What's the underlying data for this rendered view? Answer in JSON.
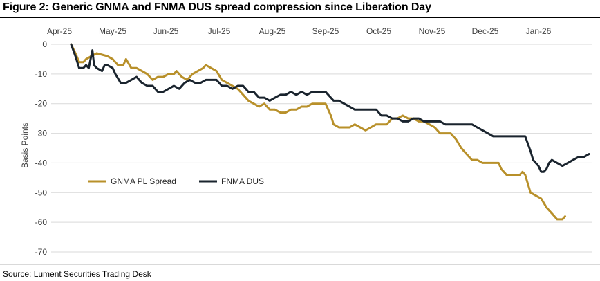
{
  "title": "Figure 2: Generic GNMA and FNMA DUS spread compression since Liberation Day",
  "source": "Source: Lument Securities Trading Desk",
  "chart_data": {
    "type": "line",
    "ylabel": "Basis Points",
    "xlabel": "",
    "ylim": [
      -70,
      0
    ],
    "yticks": [
      0,
      -10,
      -20,
      -30,
      -40,
      -50,
      -60,
      -70
    ],
    "xlim": [
      0,
      10
    ],
    "xticks": [
      {
        "x": 0,
        "label": "Apr-25"
      },
      {
        "x": 1,
        "label": "May-25"
      },
      {
        "x": 2,
        "label": "Jun-25"
      },
      {
        "x": 3,
        "label": "Jul-25"
      },
      {
        "x": 4,
        "label": "Aug-25"
      },
      {
        "x": 5,
        "label": "Sep-25"
      },
      {
        "x": 6,
        "label": "Oct-25"
      },
      {
        "x": 7,
        "label": "Nov-25"
      },
      {
        "x": 8,
        "label": "Dec-25"
      },
      {
        "x": 9,
        "label": "Jan-26"
      }
    ],
    "grid": "horizontal",
    "legend_position": "lower-left",
    "series": [
      {
        "name": "GNMA PL Spread",
        "color": "#b8902a",
        "points": [
          [
            0.22,
            0
          ],
          [
            0.3,
            -3
          ],
          [
            0.37,
            -6
          ],
          [
            0.45,
            -6
          ],
          [
            0.5,
            -5
          ],
          [
            0.6,
            -4
          ],
          [
            0.7,
            -3
          ],
          [
            0.8,
            -3.5
          ],
          [
            0.9,
            -4
          ],
          [
            1.0,
            -5
          ],
          [
            1.1,
            -7
          ],
          [
            1.2,
            -7
          ],
          [
            1.25,
            -5
          ],
          [
            1.35,
            -8
          ],
          [
            1.45,
            -8
          ],
          [
            1.55,
            -9
          ],
          [
            1.65,
            -10
          ],
          [
            1.75,
            -12
          ],
          [
            1.85,
            -11
          ],
          [
            1.95,
            -11
          ],
          [
            2.05,
            -10
          ],
          [
            2.15,
            -10
          ],
          [
            2.2,
            -9
          ],
          [
            2.3,
            -11
          ],
          [
            2.4,
            -12
          ],
          [
            2.5,
            -10
          ],
          [
            2.6,
            -9
          ],
          [
            2.7,
            -8
          ],
          [
            2.75,
            -7
          ],
          [
            2.85,
            -8
          ],
          [
            2.95,
            -9
          ],
          [
            3.05,
            -12
          ],
          [
            3.15,
            -13
          ],
          [
            3.25,
            -14
          ],
          [
            3.35,
            -15
          ],
          [
            3.45,
            -17
          ],
          [
            3.55,
            -19
          ],
          [
            3.65,
            -20
          ],
          [
            3.75,
            -21
          ],
          [
            3.85,
            -20
          ],
          [
            3.95,
            -22
          ],
          [
            4.05,
            -22
          ],
          [
            4.15,
            -23
          ],
          [
            4.25,
            -23
          ],
          [
            4.35,
            -22
          ],
          [
            4.45,
            -22
          ],
          [
            4.55,
            -21
          ],
          [
            4.65,
            -21
          ],
          [
            4.75,
            -20
          ],
          [
            4.85,
            -20
          ],
          [
            5.0,
            -20
          ],
          [
            5.1,
            -24
          ],
          [
            5.15,
            -27
          ],
          [
            5.25,
            -28
          ],
          [
            5.45,
            -28
          ],
          [
            5.55,
            -27
          ],
          [
            5.65,
            -28
          ],
          [
            5.75,
            -29
          ],
          [
            5.85,
            -28
          ],
          [
            5.95,
            -27
          ],
          [
            6.05,
            -27
          ],
          [
            6.15,
            -27
          ],
          [
            6.25,
            -25
          ],
          [
            6.35,
            -25
          ],
          [
            6.45,
            -24
          ],
          [
            6.55,
            -25
          ],
          [
            6.65,
            -25
          ],
          [
            6.75,
            -26
          ],
          [
            6.85,
            -26
          ],
          [
            6.95,
            -27
          ],
          [
            7.05,
            -28
          ],
          [
            7.15,
            -30
          ],
          [
            7.25,
            -30
          ],
          [
            7.35,
            -30
          ],
          [
            7.45,
            -32
          ],
          [
            7.55,
            -35
          ],
          [
            7.65,
            -37
          ],
          [
            7.75,
            -39
          ],
          [
            7.85,
            -39
          ],
          [
            7.95,
            -40
          ],
          [
            8.15,
            -40
          ],
          [
            8.25,
            -40
          ],
          [
            8.3,
            -42
          ],
          [
            8.4,
            -44
          ],
          [
            8.55,
            -44
          ],
          [
            8.65,
            -44
          ],
          [
            8.7,
            -43
          ],
          [
            8.75,
            -44
          ],
          [
            8.8,
            -47
          ],
          [
            8.85,
            -50
          ],
          [
            8.95,
            -51
          ],
          [
            9.05,
            -52
          ],
          [
            9.15,
            -55
          ],
          [
            9.25,
            -57
          ],
          [
            9.35,
            -59
          ],
          [
            9.45,
            -59
          ],
          [
            9.5,
            -58
          ]
        ]
      },
      {
        "name": "FNMA DUS",
        "color": "#1a242e",
        "points": [
          [
            0.22,
            0
          ],
          [
            0.3,
            -4
          ],
          [
            0.37,
            -8
          ],
          [
            0.45,
            -8
          ],
          [
            0.5,
            -7
          ],
          [
            0.55,
            -8
          ],
          [
            0.62,
            -2
          ],
          [
            0.65,
            -7
          ],
          [
            0.7,
            -8
          ],
          [
            0.8,
            -9
          ],
          [
            0.85,
            -7
          ],
          [
            0.9,
            -7
          ],
          [
            1.0,
            -8
          ],
          [
            1.05,
            -10
          ],
          [
            1.15,
            -13
          ],
          [
            1.25,
            -13
          ],
          [
            1.35,
            -12
          ],
          [
            1.45,
            -11
          ],
          [
            1.55,
            -13
          ],
          [
            1.65,
            -14
          ],
          [
            1.75,
            -14
          ],
          [
            1.85,
            -16
          ],
          [
            1.95,
            -16
          ],
          [
            2.05,
            -15
          ],
          [
            2.15,
            -14
          ],
          [
            2.25,
            -15
          ],
          [
            2.35,
            -13
          ],
          [
            2.45,
            -12
          ],
          [
            2.55,
            -13
          ],
          [
            2.65,
            -13
          ],
          [
            2.75,
            -12
          ],
          [
            2.85,
            -12
          ],
          [
            2.95,
            -12
          ],
          [
            3.05,
            -14
          ],
          [
            3.15,
            -14
          ],
          [
            3.25,
            -15
          ],
          [
            3.35,
            -14
          ],
          [
            3.45,
            -14
          ],
          [
            3.55,
            -16
          ],
          [
            3.65,
            -16
          ],
          [
            3.75,
            -18
          ],
          [
            3.85,
            -18
          ],
          [
            3.95,
            -19
          ],
          [
            4.05,
            -18
          ],
          [
            4.15,
            -17
          ],
          [
            4.25,
            -17
          ],
          [
            4.35,
            -16
          ],
          [
            4.45,
            -17
          ],
          [
            4.55,
            -16
          ],
          [
            4.65,
            -17
          ],
          [
            4.75,
            -16
          ],
          [
            4.85,
            -16
          ],
          [
            5.0,
            -16
          ],
          [
            5.1,
            -18
          ],
          [
            5.15,
            -19
          ],
          [
            5.25,
            -19
          ],
          [
            5.35,
            -20
          ],
          [
            5.45,
            -21
          ],
          [
            5.55,
            -22
          ],
          [
            5.65,
            -22
          ],
          [
            5.75,
            -22
          ],
          [
            5.85,
            -22
          ],
          [
            5.95,
            -22
          ],
          [
            6.05,
            -24
          ],
          [
            6.15,
            -24
          ],
          [
            6.25,
            -25
          ],
          [
            6.35,
            -25
          ],
          [
            6.45,
            -26
          ],
          [
            6.55,
            -26
          ],
          [
            6.65,
            -25
          ],
          [
            6.75,
            -25
          ],
          [
            6.85,
            -26
          ],
          [
            6.95,
            -26
          ],
          [
            7.05,
            -26
          ],
          [
            7.15,
            -26
          ],
          [
            7.25,
            -27
          ],
          [
            7.35,
            -27
          ],
          [
            7.45,
            -27
          ],
          [
            7.55,
            -27
          ],
          [
            7.65,
            -27
          ],
          [
            7.75,
            -27
          ],
          [
            7.85,
            -28
          ],
          [
            7.95,
            -29
          ],
          [
            8.05,
            -30
          ],
          [
            8.15,
            -31
          ],
          [
            8.25,
            -31
          ],
          [
            8.35,
            -31
          ],
          [
            8.45,
            -31
          ],
          [
            8.55,
            -31
          ],
          [
            8.65,
            -31
          ],
          [
            8.75,
            -31
          ],
          [
            8.85,
            -36
          ],
          [
            8.9,
            -39
          ],
          [
            9.0,
            -41
          ],
          [
            9.05,
            -43
          ],
          [
            9.1,
            -43
          ],
          [
            9.15,
            -42
          ],
          [
            9.2,
            -40
          ],
          [
            9.25,
            -39
          ],
          [
            9.35,
            -40
          ],
          [
            9.45,
            -41
          ],
          [
            9.55,
            -40
          ],
          [
            9.65,
            -39
          ],
          [
            9.75,
            -38
          ],
          [
            9.85,
            -38
          ],
          [
            9.95,
            -37
          ]
        ]
      }
    ]
  }
}
